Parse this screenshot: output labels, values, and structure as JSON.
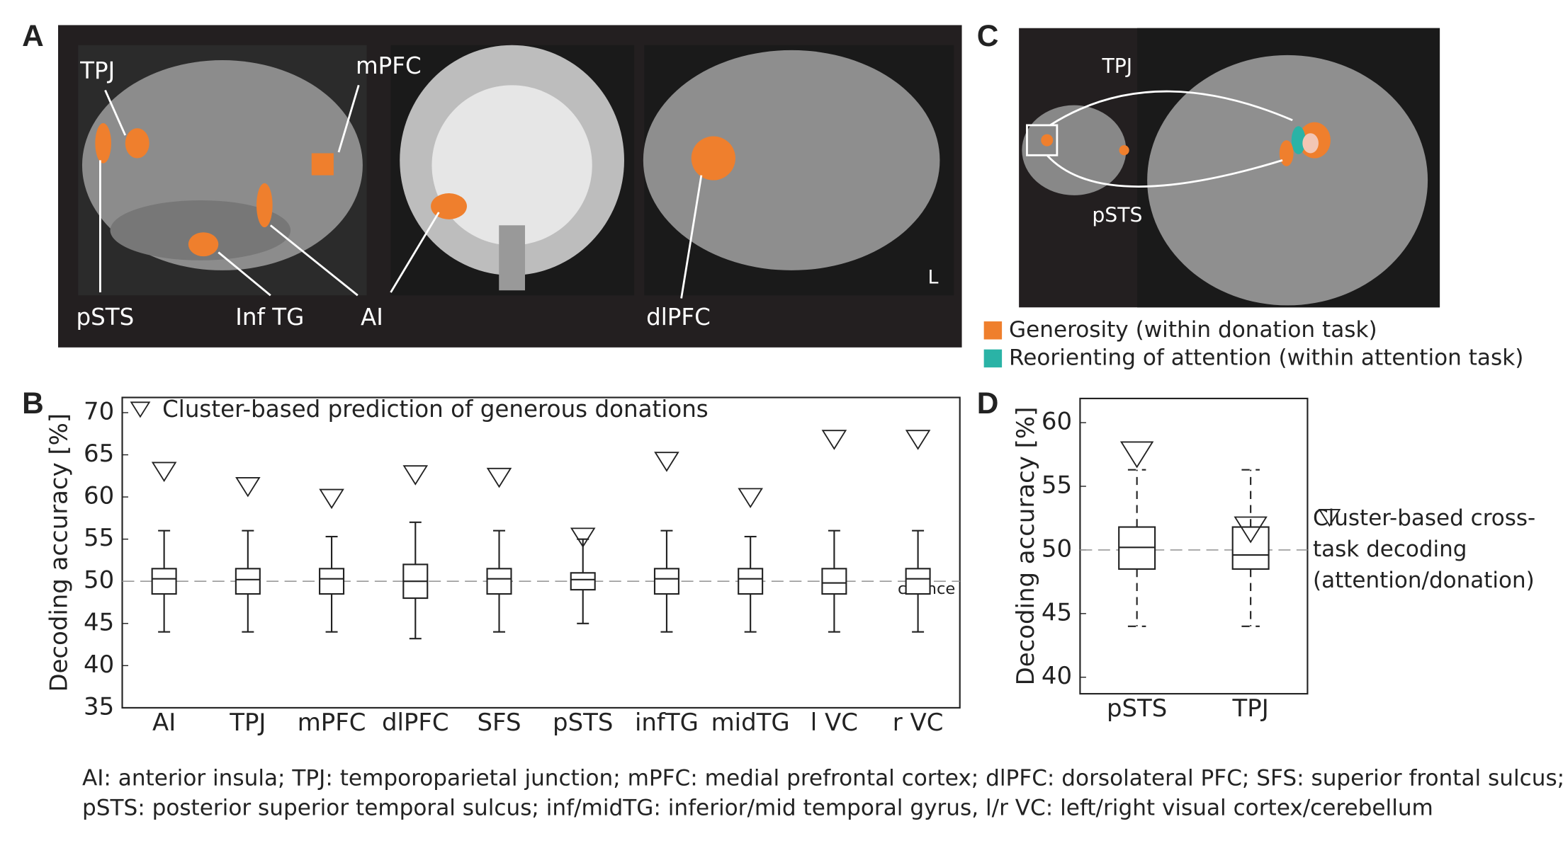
{
  "panels": {
    "a": {
      "letter": "A",
      "labels": [
        "TPJ",
        "mPFC",
        "pSTS",
        "Inf TG",
        "AI",
        "dlPFC",
        "L"
      ]
    },
    "c": {
      "letter": "C",
      "labels": [
        "TPJ",
        "pSTS"
      ],
      "legend": [
        {
          "name": "Generosity (within donation task)",
          "color": "#ef7f2d"
        },
        {
          "name": "Reorienting of attention (within attention task)",
          "color": "#2ab3a6"
        }
      ]
    }
  },
  "chart_data": [
    {
      "type": "box",
      "letter": "B",
      "y_label": "Decoding accuracy [%]",
      "categories": [
        "AI",
        "TPJ",
        "mPFC",
        "dlPFC",
        "SFS",
        "pSTS",
        "infTG",
        "midTG",
        "l VC",
        "r VC"
      ],
      "boxes": {
        "low": [
          44,
          44,
          44,
          43.2,
          44,
          45,
          44,
          44,
          44,
          44
        ],
        "q1": [
          48.5,
          48.5,
          48.5,
          48,
          48.5,
          49,
          48.5,
          48.5,
          48.5,
          48.5
        ],
        "median": [
          50.3,
          50.2,
          50.3,
          50,
          50.3,
          50.2,
          50.3,
          50.3,
          49.8,
          50.3
        ],
        "q3": [
          51.5,
          51.5,
          51.5,
          52,
          51.5,
          51,
          51.5,
          51.5,
          51.5,
          51.5
        ],
        "high": [
          56,
          56,
          55.3,
          57,
          56,
          55,
          56,
          55.3,
          56,
          56
        ]
      },
      "markers": {
        "name": "Cluster-based prediction of generous donations",
        "values": [
          63,
          61.2,
          59.8,
          62.6,
          62.3,
          55.2,
          64.2,
          59.9,
          66.8,
          66.8
        ]
      },
      "reference_line": {
        "value": 50,
        "label": "chance"
      },
      "ylim": [
        35,
        71.8
      ],
      "yticks": [
        35,
        40,
        45,
        50,
        55,
        60,
        65,
        70
      ]
    },
    {
      "type": "box",
      "letter": "D",
      "y_label": "Decoding accuracy [%]",
      "categories": [
        "pSTS",
        "TPJ"
      ],
      "boxes": {
        "low": [
          44,
          44
        ],
        "q1": [
          48.5,
          48.5
        ],
        "median": [
          50.2,
          49.6
        ],
        "q3": [
          51.8,
          51.8
        ],
        "high": [
          56.3,
          56.3
        ]
      },
      "markers": {
        "name": "Cluster-based cross-task decoding (attention/donation)",
        "values": [
          57.5,
          51.6
        ]
      },
      "reference_line": {
        "value": 50
      },
      "ylim": [
        38.7,
        61.9
      ],
      "yticks": [
        40,
        45,
        50,
        55,
        60
      ]
    }
  ],
  "caption": [
    "AI: anterior insula; TPJ: temporoparietal junction; mPFC: medial prefrontal cortex; dlPFC: dorsolateral PFC; SFS: superior frontal sulcus;",
    "pSTS: posterior superior temporal sulcus; inf/midTG: inferior/mid temporal gyrus, l/r VC: left/right visual cortex/cerebellum"
  ]
}
